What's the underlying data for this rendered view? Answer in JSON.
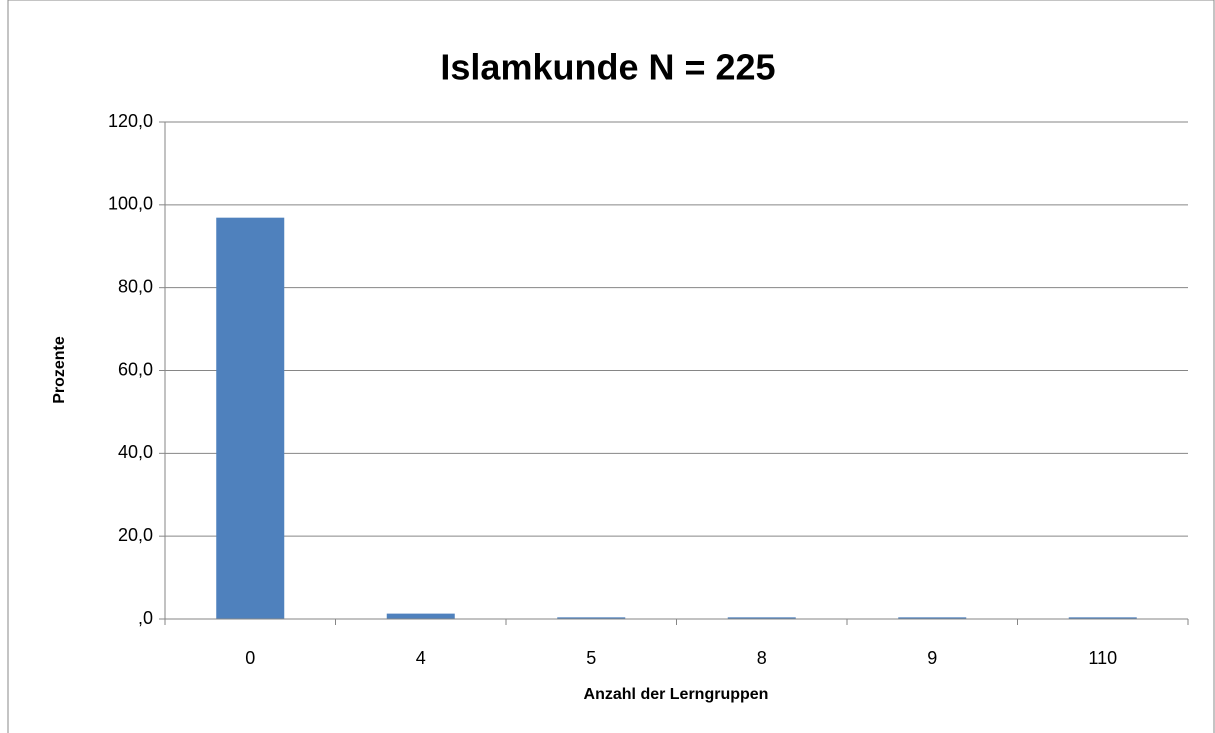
{
  "chart_data": {
    "type": "bar",
    "title": "Islamkunde N = 225",
    "x_label": "Anzahl der Lerngruppen",
    "y_label": "Prozente",
    "categories": [
      "0",
      "4",
      "5",
      "8",
      "9",
      "110"
    ],
    "values": [
      96.9,
      1.3,
      0.4,
      0.4,
      0.4,
      0.4
    ],
    "color": "#4f81bd",
    "ylim": [
      0,
      120
    ],
    "yticks": [
      {
        "value": 0,
        "label": ",0"
      },
      {
        "value": 20,
        "label": "20,0"
      },
      {
        "value": 40,
        "label": "40,0"
      },
      {
        "value": 60,
        "label": "60,0"
      },
      {
        "value": 80,
        "label": "80,0"
      },
      {
        "value": 100,
        "label": "100,0"
      },
      {
        "value": 120,
        "label": "120,0"
      }
    ],
    "grid": true
  }
}
